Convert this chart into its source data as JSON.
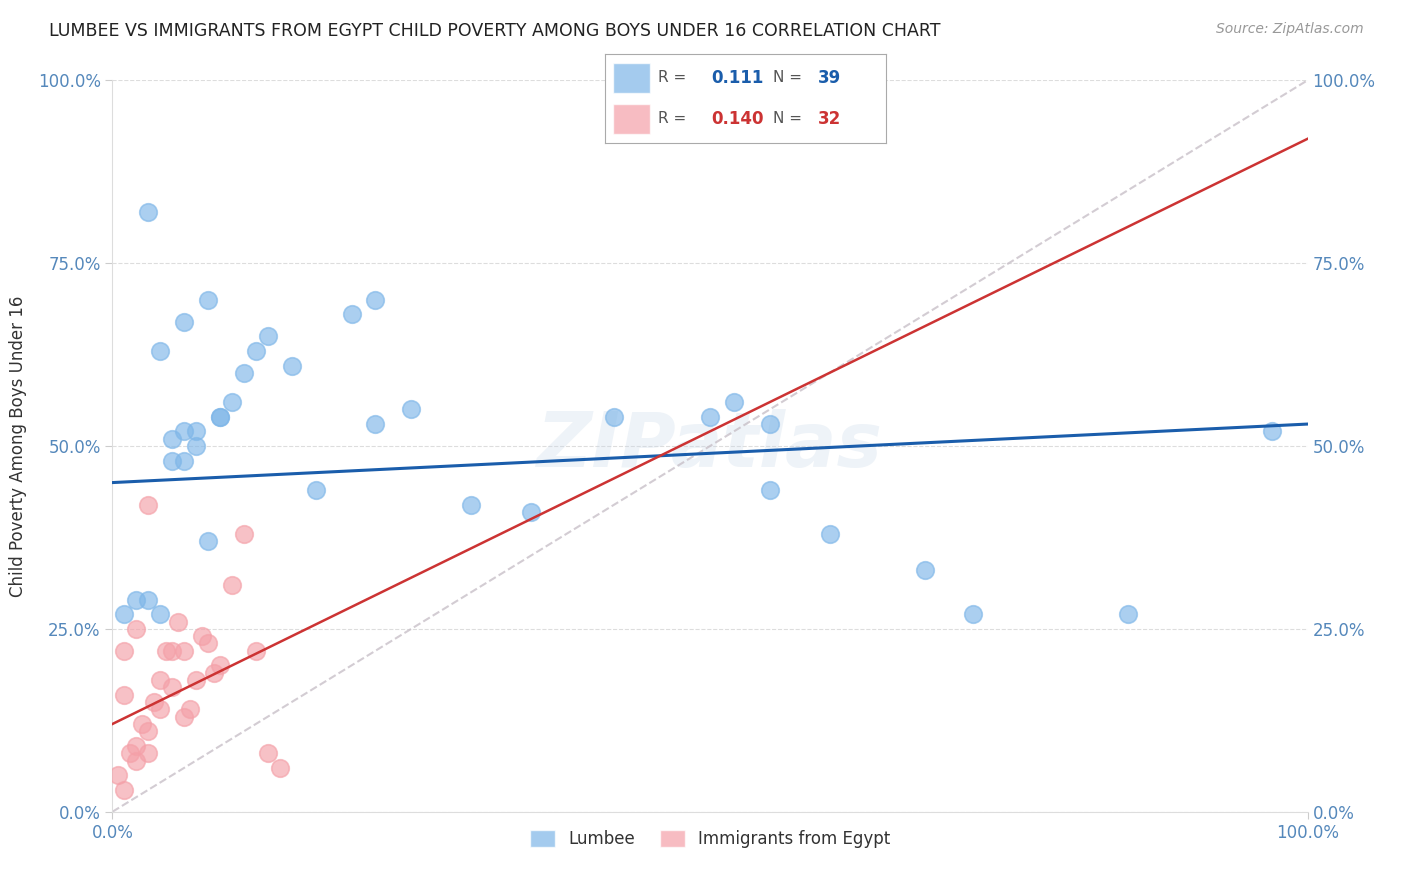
{
  "title": "LUMBEE VS IMMIGRANTS FROM EGYPT CHILD POVERTY AMONG BOYS UNDER 16 CORRELATION CHART",
  "source": "Source: ZipAtlas.com",
  "ylabel": "Child Poverty Among Boys Under 16",
  "legend_labels": [
    "Lumbee",
    "Immigrants from Egypt"
  ],
  "lumbee_R": "0.111",
  "lumbee_N": "39",
  "egypt_R": "0.140",
  "egypt_N": "32",
  "lumbee_color": "#7EB6E8",
  "egypt_color": "#F4A0A8",
  "lumbee_line_color": "#1A5DAB",
  "egypt_line_color": "#CC3333",
  "watermark": "ZIPatlas",
  "lumbee_x": [
    1,
    2,
    3,
    4,
    5,
    5,
    6,
    6,
    7,
    7,
    8,
    9,
    10,
    11,
    12,
    13,
    15,
    17,
    20,
    22,
    25,
    30,
    35,
    42,
    50,
    52,
    55,
    60,
    68,
    72,
    85,
    97,
    3,
    4,
    6,
    8,
    9,
    22,
    55
  ],
  "lumbee_y": [
    27,
    29,
    29,
    27,
    48,
    51,
    48,
    52,
    50,
    52,
    37,
    54,
    56,
    60,
    63,
    65,
    61,
    44,
    68,
    70,
    55,
    42,
    41,
    54,
    54,
    56,
    44,
    38,
    33,
    27,
    27,
    52,
    82,
    63,
    67,
    70,
    54,
    53,
    53
  ],
  "egypt_x": [
    0.5,
    1,
    1.5,
    2,
    2.5,
    3,
    3,
    3.5,
    4,
    4,
    4.5,
    5,
    5,
    5.5,
    6,
    6,
    6.5,
    7,
    7.5,
    8,
    8.5,
    9,
    10,
    11,
    12,
    13,
    14,
    3,
    2,
    1,
    1,
    2
  ],
  "egypt_y": [
    5,
    3,
    8,
    9,
    12,
    8,
    11,
    15,
    14,
    18,
    22,
    17,
    22,
    26,
    13,
    22,
    14,
    18,
    24,
    23,
    19,
    20,
    31,
    38,
    22,
    8,
    6,
    42,
    7,
    16,
    22,
    25
  ],
  "background_color": "#FFFFFF",
  "grid_color": "#DDDDDD",
  "xlim": [
    0,
    100
  ],
  "ylim": [
    0,
    100
  ],
  "lumbee_intercept": 45.0,
  "lumbee_slope": 0.08,
  "egypt_intercept": 12.0,
  "egypt_slope": 0.8
}
